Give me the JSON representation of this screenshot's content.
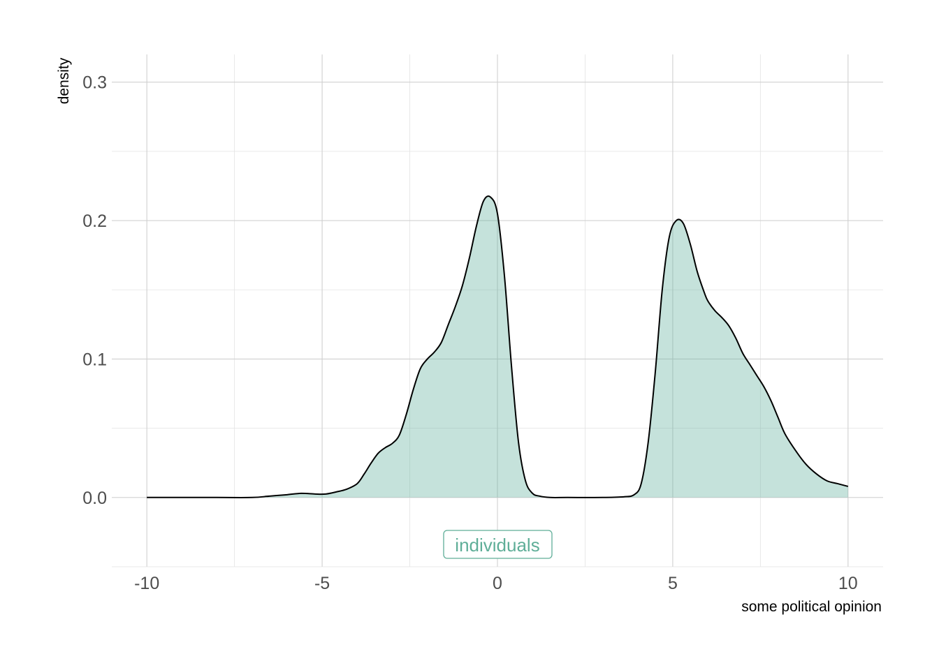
{
  "chart_data": {
    "type": "area",
    "title": "",
    "xlabel": "some political opinion",
    "ylabel": "density",
    "xlim": [
      -11,
      11
    ],
    "ylim": [
      -0.05,
      0.32
    ],
    "xticks": [
      -10,
      -5,
      0,
      5,
      10
    ],
    "xtick_labels": [
      "-10",
      "-5",
      "0",
      "5",
      "10"
    ],
    "yticks": [
      0.0,
      0.1,
      0.2,
      0.3
    ],
    "ytick_labels": [
      "0.0",
      "0.1",
      "0.2",
      "0.3"
    ],
    "grid": true,
    "legend": "bottom",
    "colors": {
      "fill": "#66b2a0",
      "fill_opacity": 0.38,
      "line": "#000000",
      "label": "#5fae98"
    },
    "series": [
      {
        "name": "individuals",
        "x": [
          -10,
          -9,
          -8,
          -7,
          -6.5,
          -6,
          -5.6,
          -5.2,
          -4.9,
          -4.6,
          -4.3,
          -4.0,
          -3.8,
          -3.6,
          -3.4,
          -3.2,
          -3.0,
          -2.8,
          -2.6,
          -2.4,
          -2.2,
          -2.0,
          -1.8,
          -1.6,
          -1.4,
          -1.2,
          -1.0,
          -0.8,
          -0.6,
          -0.4,
          -0.2,
          0.0,
          0.2,
          0.4,
          0.6,
          0.8,
          1.0,
          1.2,
          1.5,
          2.0,
          3.0,
          3.6,
          3.9,
          4.1,
          4.3,
          4.5,
          4.7,
          4.9,
          5.1,
          5.3,
          5.5,
          5.7,
          5.9,
          6.0,
          6.2,
          6.4,
          6.6,
          6.8,
          7.0,
          7.2,
          7.4,
          7.6,
          7.8,
          8.0,
          8.2,
          8.5,
          8.8,
          9.1,
          9.4,
          9.7,
          10.0
        ],
        "y": [
          0.0,
          0.0,
          0.0,
          0.0,
          0.001,
          0.002,
          0.003,
          0.0025,
          0.0025,
          0.004,
          0.006,
          0.01,
          0.017,
          0.025,
          0.032,
          0.036,
          0.039,
          0.045,
          0.06,
          0.078,
          0.093,
          0.1,
          0.105,
          0.112,
          0.125,
          0.138,
          0.153,
          0.173,
          0.196,
          0.214,
          0.217,
          0.205,
          0.16,
          0.095,
          0.04,
          0.012,
          0.003,
          0.001,
          0.0,
          0.0,
          0.0,
          0.0005,
          0.002,
          0.01,
          0.04,
          0.09,
          0.15,
          0.188,
          0.2,
          0.198,
          0.183,
          0.163,
          0.148,
          0.142,
          0.135,
          0.13,
          0.124,
          0.115,
          0.104,
          0.096,
          0.088,
          0.08,
          0.07,
          0.058,
          0.046,
          0.034,
          0.024,
          0.017,
          0.012,
          0.01,
          0.008
        ]
      }
    ]
  }
}
